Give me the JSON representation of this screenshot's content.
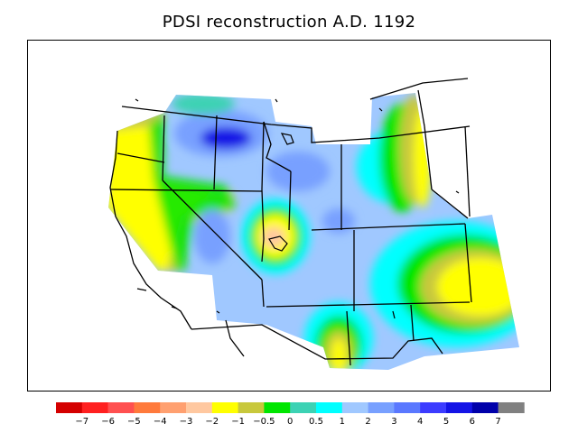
{
  "title": "PDSI reconstruction A.D. 1192",
  "colorbar": {
    "colors": [
      "#d40000",
      "#ff2020",
      "#ff5050",
      "#ff7a3c",
      "#ffa070",
      "#ffc8a0",
      "#ffff00",
      "#c8c83c",
      "#00e600",
      "#3cd2b4",
      "#00ffff",
      "#a0c8ff",
      "#78a0ff",
      "#5a78ff",
      "#3c3cff",
      "#1414e6",
      "#0000aa",
      "#808080"
    ],
    "tick_labels": [
      "−7",
      "−6",
      "−5",
      "−4",
      "−3",
      "−2",
      "−1",
      "−0.5",
      "0",
      "0.5",
      "1",
      "2",
      "3",
      "4",
      "5",
      "6",
      "7"
    ]
  }
}
